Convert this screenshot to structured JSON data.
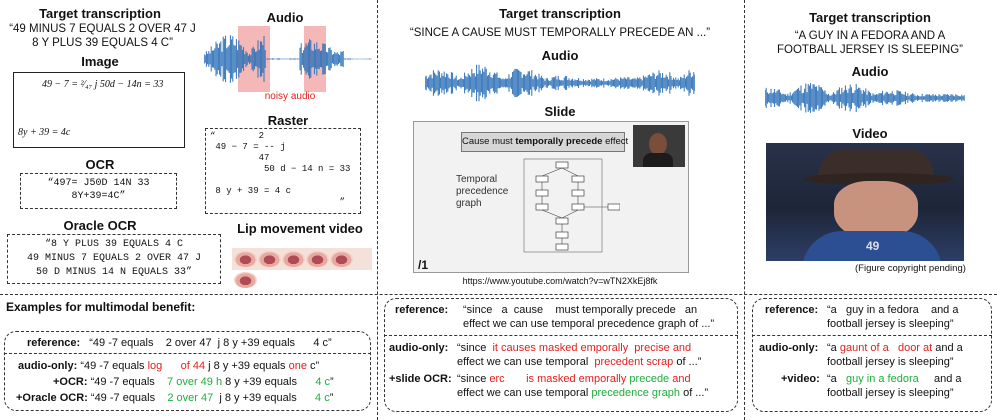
{
  "col1": {
    "target_heading": "Target transcription",
    "target_text": "“49 MINUS 7 EQUALS 2 OVER 47 J\n8 Y PLUS 39 EQUALS 4 C”",
    "image_heading": "Image",
    "image_eq1": "49 − 7 = ²⁄₄₇ j 50d − 14n = 33",
    "image_eq2": "8y + 39 = 4c",
    "audio_heading": "Audio",
    "noisy_label": "noisy audio",
    "raster_heading": "Raster",
    "raster_text": "“        2\n 49 − 7 = -- j\n         47\n          50 d − 14 n = 33\n\n 8 y + 39 = 4 c\n                        ”",
    "ocr_heading": "OCR",
    "ocr_text": "“497= J50D 14N 33\n8Y+39=4C”",
    "oracle_heading": "Oracle OCR",
    "oracle_text": "“8 Y PLUS 39 EQUALS 4 C\n49 MINUS 7 EQUALS 2 OVER 47 J\n50 D MINUS 14 N EQUALS 33”",
    "lip_heading": "Lip movement video"
  },
  "col2": {
    "target_heading": "Target transcription",
    "target_text": "“SINCE A CAUSE MUST TEMPORALLY PRECEDE AN ...”",
    "audio_heading": "Audio",
    "slide_heading": "Slide",
    "slide_box_text_pre": "Cause must ",
    "slide_box_text_bold": "temporally precede",
    "slide_box_text_post": " effect",
    "slide_side_label": "Temporal\nprecedence\ngraph",
    "slide_url": "https://www.youtube.com/watch?v=wTN2XkEj8fk"
  },
  "col3": {
    "target_heading": "Target transcription",
    "target_text": "“A GUY IN A FEDORA AND A\nFOOTBALL JERSEY IS SLEEPING”",
    "audio_heading": "Audio",
    "video_heading": "Video",
    "copyright": "(Figure copyright pending)"
  },
  "examples": {
    "heading": "Examples for multimodal benefit:",
    "col1": {
      "reference_label": "reference:",
      "reference_text": "“49 -7 equals    2 over 47  j 8 y +39 equals      4 c”",
      "audio_label": "audio-only:",
      "audio_parts": [
        "“49 -7 equals ",
        "log",
        "      ",
        "of 44",
        " j 8 y +39 equals ",
        "one",
        " c”"
      ],
      "ocr_label": "+OCR:",
      "ocr_parts": [
        "“49 -7 equals    ",
        "7 over 49 h",
        " 8 y +39 equals      ",
        "4 c",
        "”"
      ],
      "oracle_label": "+Oracle OCR:",
      "oracle_parts": [
        "“49 -7 equals    ",
        "2 over 47",
        "  j 8 y +39 equals      ",
        "4 c",
        "”"
      ]
    },
    "col2": {
      "reference_label": "reference:",
      "reference_text": "“since   a  cause    must temporally precede   an\neffect we can use temporal precedence graph of ...”",
      "audio_label": "audio-only:",
      "audio_parts": [
        "“since  ",
        "it causes masked emporally  precise and",
        "\neffect we can use temporal  ",
        "precedent scrap",
        " of ...”"
      ],
      "slide_label": "+slide OCR:",
      "slide_parts": [
        "“since ",
        "erc",
        "       ",
        "is masked emporally",
        " ",
        "precede",
        " ",
        "and",
        "\neffect we can use temporal ",
        "precedence graph",
        " of ...”"
      ]
    },
    "col3": {
      "reference_label": "reference:",
      "reference_text": "“a   guy in a fedora    and a\nfootball jersey is sleeping”",
      "audio_label": "audio-only:",
      "audio_parts": [
        "“a ",
        "gaunt of a",
        "   ",
        "door at",
        " and a\nfootball jersey is sleeping”"
      ],
      "video_label": "+video:",
      "video_parts": [
        "“a   ",
        "guy in a fedora",
        "     and a\nfootball jersey is sleeping”"
      ]
    }
  },
  "colors": {
    "wave": "#2f72b8",
    "noisy": "#f5b8b8",
    "red": "#e0201e",
    "green": "#1fae3c"
  }
}
